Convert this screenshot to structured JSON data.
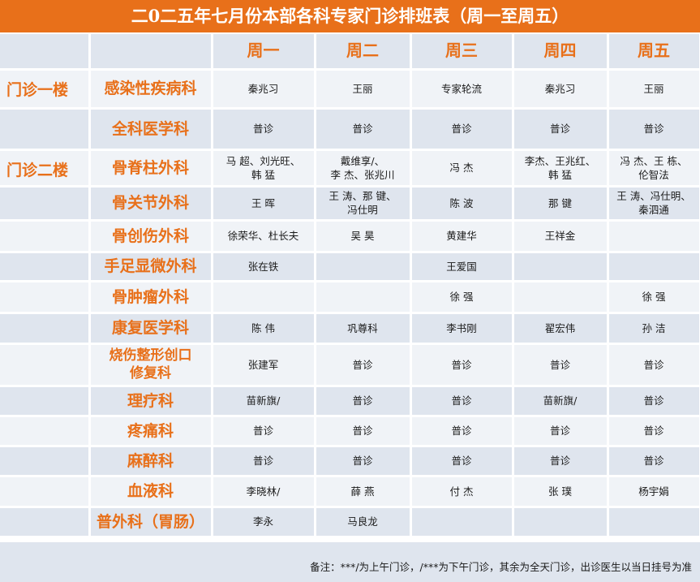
{
  "title": "二0二五年七月份本部各科专家门诊排班表（周一至周五）",
  "days": [
    "周一",
    "周二",
    "周三",
    "周四",
    "周五"
  ],
  "floors": {
    "first": "门诊一楼",
    "second": "门诊二楼"
  },
  "rows": [
    {
      "dept": "感染性疾病科",
      "cells": [
        "秦兆习",
        "王丽",
        "专家轮流",
        "秦兆习",
        "王丽"
      ]
    },
    {
      "dept": "全科医学科",
      "cells": [
        "普诊",
        "普诊",
        "普诊",
        "普诊",
        "普诊"
      ]
    },
    {
      "dept": "骨脊柱外科",
      "cells": [
        "马  超、刘光旺、\n韩  猛",
        "戴维享/、\n李  杰、张兆川",
        "冯  杰",
        "李杰、王兆红、\n韩  猛",
        "冯  杰、王  栋、\n伦智法"
      ]
    },
    {
      "dept": "骨关节外科",
      "cells": [
        "王  晖",
        "王  涛、那  键、\n冯仕明",
        "陈  波",
        "那  键",
        "王  涛、冯仕明、\n秦泗通"
      ]
    },
    {
      "dept": "骨创伤外科",
      "cells": [
        "徐荣华、杜长夫",
        "吴  昊",
        "黄建华",
        "王祥金",
        ""
      ]
    },
    {
      "dept": "手足显微外科",
      "cells": [
        "张在铁",
        "",
        "王爱国",
        "",
        ""
      ]
    },
    {
      "dept": "骨肿瘤外科",
      "cells": [
        "",
        "",
        "徐  强",
        "",
        "徐  强"
      ]
    },
    {
      "dept": "康复医学科",
      "cells": [
        "陈  伟",
        "巩尊科",
        "李书刚",
        "翟宏伟",
        "孙  洁"
      ]
    },
    {
      "dept": "烧伤整形创口\n修复科",
      "cells": [
        "张建军",
        "普诊",
        "普诊",
        "普诊",
        "普诊"
      ]
    },
    {
      "dept": "理疗科",
      "cells": [
        "苗新旗/",
        "普诊",
        "普诊",
        "苗新旗/",
        "普诊"
      ]
    },
    {
      "dept": "疼痛科",
      "cells": [
        "普诊",
        "普诊",
        "普诊",
        "普诊",
        "普诊"
      ]
    },
    {
      "dept": "麻醉科",
      "cells": [
        "普诊",
        "普诊",
        "普诊",
        "普诊",
        "普诊"
      ]
    },
    {
      "dept": "血液科",
      "cells": [
        "李晓林/",
        "薛    燕",
        "付    杰",
        "张    璞",
        "杨宇娟"
      ]
    },
    {
      "dept": "普外科（胃肠）",
      "cells": [
        "李永",
        "马良龙",
        "",
        "",
        ""
      ]
    }
  ],
  "note": "备注：***/为上午门诊，/***为下午门诊，其余为全天门诊，出诊医生以当日挂号为准"
}
